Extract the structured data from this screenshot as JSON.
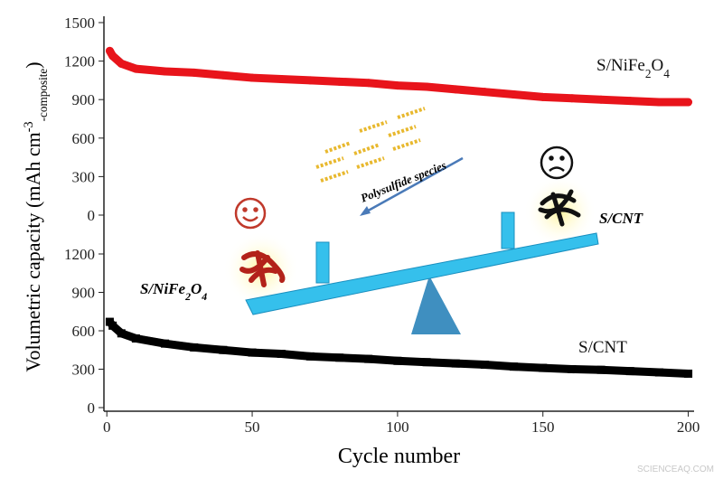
{
  "chart_data": [
    {
      "type": "line",
      "ylabel": [
        "Volumetric capacity (mAh cm",
        "-3",
        "-composite",
        ")"
      ],
      "xlim": [
        -1,
        202
      ],
      "ylim": [
        0,
        1500
      ],
      "yticks": [
        0,
        300,
        600,
        900,
        1200,
        1500
      ],
      "x": [
        1,
        2,
        5,
        10,
        20,
        30,
        40,
        50,
        60,
        70,
        80,
        90,
        100,
        110,
        120,
        130,
        140,
        150,
        160,
        170,
        180,
        190,
        200
      ],
      "series": [
        {
          "name": "S/NiFe2O4",
          "color": "#e8141b",
          "values": [
            1280,
            1240,
            1180,
            1140,
            1120,
            1110,
            1090,
            1070,
            1060,
            1050,
            1040,
            1030,
            1010,
            1000,
            980,
            960,
            940,
            920,
            910,
            900,
            890,
            880,
            880
          ]
        }
      ]
    },
    {
      "type": "line",
      "xlabel": "Cycle number",
      "xlim": [
        -1,
        202
      ],
      "xticks": [
        0,
        50,
        100,
        150,
        200
      ],
      "ylim": [
        0,
        1350
      ],
      "yticks": [
        0,
        300,
        600,
        900,
        1200
      ],
      "x": [
        1,
        2,
        5,
        10,
        20,
        30,
        40,
        50,
        60,
        70,
        80,
        90,
        100,
        110,
        120,
        130,
        140,
        150,
        160,
        170,
        180,
        190,
        200
      ],
      "series": [
        {
          "name": "S/CNT",
          "color": "#000000",
          "values": [
            670,
            640,
            580,
            540,
            500,
            470,
            450,
            430,
            420,
            400,
            390,
            380,
            365,
            355,
            345,
            335,
            320,
            310,
            300,
            295,
            285,
            275,
            265
          ]
        }
      ]
    }
  ],
  "illustration": {
    "arrow_label": "Polysulfide species",
    "left_label": "S/NiFe2O4",
    "right_label": "S/CNT",
    "watermark": "SCIENCEAQ.COM"
  }
}
